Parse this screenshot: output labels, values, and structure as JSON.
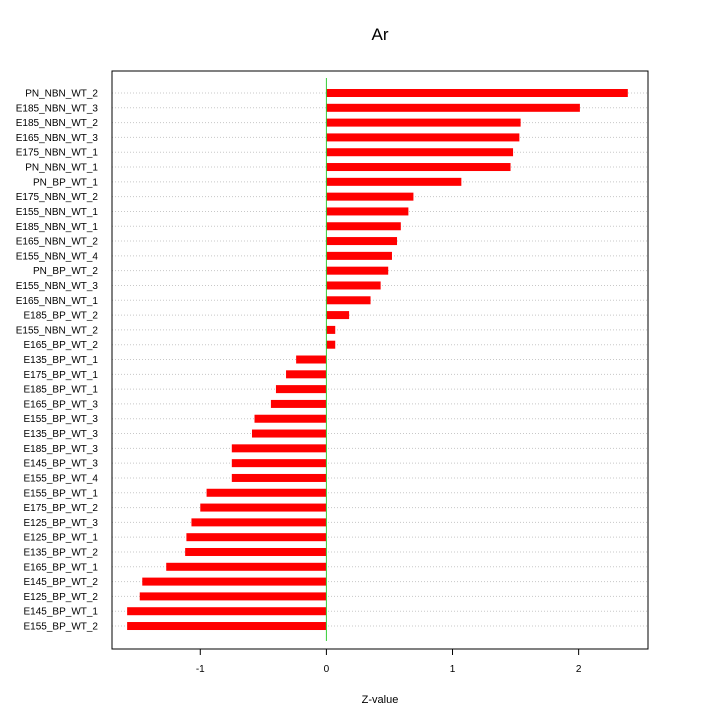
{
  "chart_data": {
    "type": "bar",
    "orientation": "horizontal",
    "title": "Ar",
    "xlabel": "Z-value",
    "ylabel": "",
    "xlim": [
      -1.7,
      2.55
    ],
    "x_ticks": [
      -1,
      0,
      1,
      2
    ],
    "grid": "horizontal dotted",
    "zero_line_color": "#33cc33",
    "bar_color": "#ff0000",
    "categories": [
      "PN_NBN_WT_2",
      "E185_NBN_WT_3",
      "E185_NBN_WT_2",
      "E165_NBN_WT_3",
      "E175_NBN_WT_1",
      "PN_NBN_WT_1",
      "PN_BP_WT_1",
      "E175_NBN_WT_2",
      "E155_NBN_WT_1",
      "E185_NBN_WT_1",
      "E165_NBN_WT_2",
      "E155_NBN_WT_4",
      "PN_BP_WT_2",
      "E155_NBN_WT_3",
      "E165_NBN_WT_1",
      "E185_BP_WT_2",
      "E155_NBN_WT_2",
      "E165_BP_WT_2",
      "E135_BP_WT_1",
      "E175_BP_WT_1",
      "E185_BP_WT_1",
      "E165_BP_WT_3",
      "E155_BP_WT_3",
      "E135_BP_WT_3",
      "E185_BP_WT_3",
      "E145_BP_WT_3",
      "E155_BP_WT_4",
      "E155_BP_WT_1",
      "E175_BP_WT_2",
      "E125_BP_WT_3",
      "E125_BP_WT_1",
      "E135_BP_WT_2",
      "E165_BP_WT_1",
      "E145_BP_WT_2",
      "E125_BP_WT_2",
      "E145_BP_WT_1",
      "E155_BP_WT_2"
    ],
    "values": [
      2.39,
      2.01,
      1.54,
      1.53,
      1.48,
      1.46,
      1.07,
      0.69,
      0.65,
      0.59,
      0.56,
      0.52,
      0.49,
      0.43,
      0.35,
      0.18,
      0.07,
      0.07,
      -0.24,
      -0.32,
      -0.4,
      -0.44,
      -0.57,
      -0.59,
      -0.75,
      -0.75,
      -0.75,
      -0.95,
      -1.0,
      -1.07,
      -1.11,
      -1.12,
      -1.27,
      -1.46,
      -1.48,
      -1.58,
      -1.58
    ]
  }
}
